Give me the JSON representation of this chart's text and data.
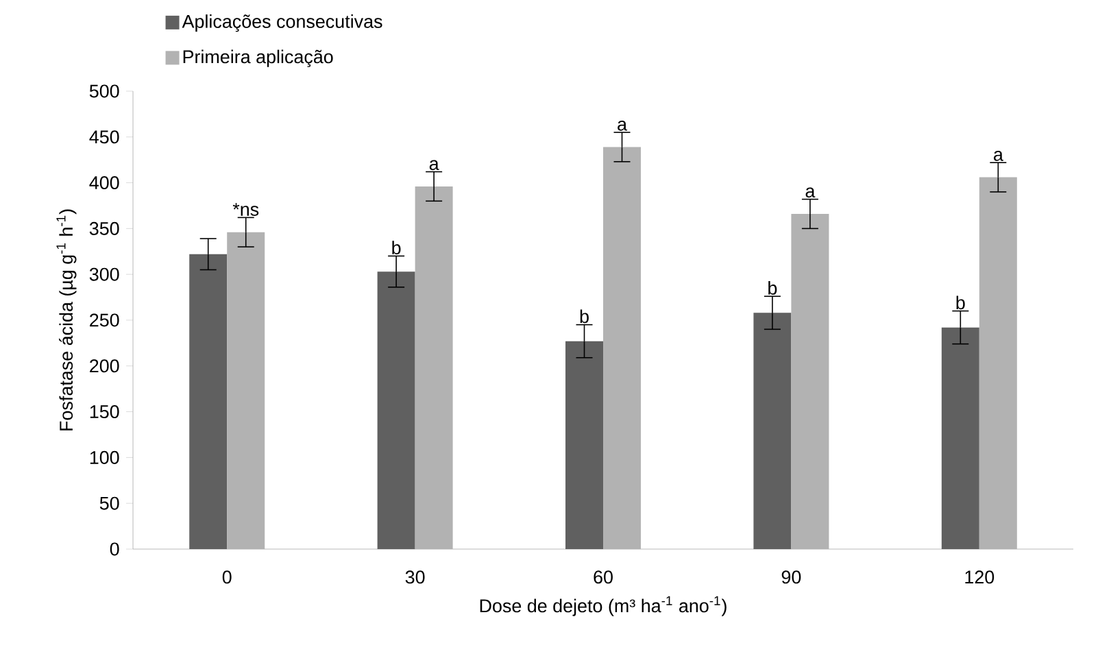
{
  "chart_data": {
    "type": "bar",
    "xlabel": "Dose de dejeto (m³ ha$^{-1}$ ano$^{-1}$)",
    "ylabel": "Fosfatase ácida (µg g$^{-1}$ h$^{-1}$)",
    "categories": [
      "0",
      "30",
      "60",
      "90",
      "120"
    ],
    "series": [
      {
        "name": "Aplicações consecutivas",
        "color": "#606060",
        "values": [
          322,
          303,
          227,
          258,
          242
        ],
        "errors": [
          17,
          17,
          18,
          18,
          18
        ]
      },
      {
        "name": "Primeira aplicação",
        "color": "#b2b2b2",
        "values": [
          346,
          396,
          439,
          366,
          406
        ],
        "errors": [
          16,
          16,
          16,
          16,
          16
        ]
      }
    ],
    "ylim": [
      0,
      500
    ],
    "yticks": [
      0,
      50,
      100,
      150,
      200,
      250,
      300,
      350,
      400,
      450,
      500
    ],
    "grid": false,
    "legend": "top left",
    "annotations": [
      {
        "text": "*ns",
        "x": "0",
        "y": 346
      },
      {
        "text": "b",
        "x": "30",
        "y": 303
      },
      {
        "text": "a",
        "x": "30",
        "y": 396
      },
      {
        "text": "b",
        "x": "60",
        "y": 227
      },
      {
        "text": "a",
        "x": "60",
        "y": 439
      },
      {
        "text": "b",
        "x": "90",
        "y": 258
      },
      {
        "text": "a",
        "x": "90",
        "y": 366
      },
      {
        "text": "b",
        "x": "120",
        "y": 242
      },
      {
        "text": "a",
        "x": "120",
        "y": 406
      }
    ]
  }
}
